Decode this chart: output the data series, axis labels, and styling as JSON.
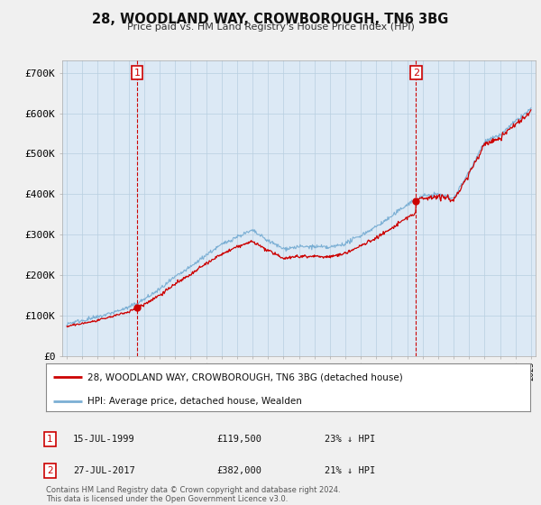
{
  "title": "28, WOODLAND WAY, CROWBOROUGH, TN6 3BG",
  "subtitle": "Price paid vs. HM Land Registry's House Price Index (HPI)",
  "legend_line1": "28, WOODLAND WAY, CROWBOROUGH, TN6 3BG (detached house)",
  "legend_line2": "HPI: Average price, detached house, Wealden",
  "annotation1_label": "1",
  "annotation1_date": "15-JUL-1999",
  "annotation1_price": "£119,500",
  "annotation1_hpi": "23% ↓ HPI",
  "annotation1_year": 1999.54,
  "annotation1_value": 119500,
  "annotation2_label": "2",
  "annotation2_date": "27-JUL-2017",
  "annotation2_price": "£382,000",
  "annotation2_hpi": "21% ↓ HPI",
  "annotation2_year": 2017.57,
  "annotation2_value": 382000,
  "footer": "Contains HM Land Registry data © Crown copyright and database right 2024.\nThis data is licensed under the Open Government Licence v3.0.",
  "hpi_color": "#7bafd4",
  "sale_color": "#cc0000",
  "background_color": "#f0f0f0",
  "plot_bg_color": "#dce9f5",
  "ylim": [
    0,
    730000
  ],
  "yticks": [
    0,
    100000,
    200000,
    300000,
    400000,
    500000,
    600000,
    700000
  ],
  "ytick_labels": [
    "£0",
    "£100K",
    "£200K",
    "£300K",
    "£400K",
    "£500K",
    "£600K",
    "£700K"
  ],
  "xstart": 1995,
  "xend": 2025
}
